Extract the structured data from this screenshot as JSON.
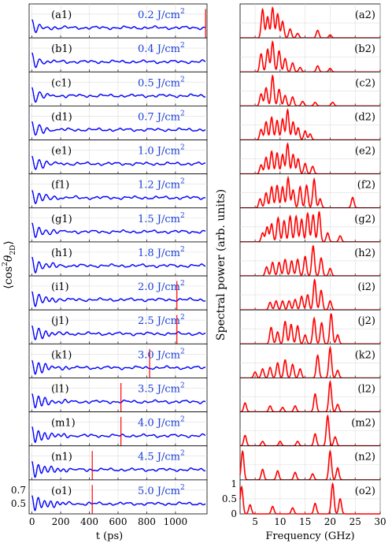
{
  "chart_data": [
    {
      "type": "line",
      "ylabel_main": "⟨cos",
      "ylabel_sup": "2",
      "ylabel_theta": "θ",
      "ylabel_sub": "2D",
      "ylabel_close": "⟩",
      "xlabel": "t (ps)",
      "x_ticks": [
        "0",
        "200",
        "400",
        "600",
        "800",
        "1000"
      ],
      "x_tick_values": [
        0,
        200,
        400,
        600,
        800,
        1000
      ],
      "xlim": [
        -20,
        1220
      ],
      "ylim": [
        0.35,
        0.85
      ],
      "y_ticks_bottom": [
        "0.5",
        "0.7"
      ],
      "y_tick_values": [
        0.5,
        0.7
      ],
      "series_color": "#0000ff",
      "marker_color": "#ff0000",
      "panels": [
        {
          "label": "(a1)",
          "fluence": "0.2 J/cm",
          "sup": "2",
          "marker": 1210
        },
        {
          "label": "(b1)",
          "fluence": "0.4 J/cm",
          "sup": "2",
          "marker": null
        },
        {
          "label": "(c1)",
          "fluence": "0.5 J/cm",
          "sup": "2",
          "marker": null
        },
        {
          "label": "(d1)",
          "fluence": "0.7 J/cm",
          "sup": "2",
          "marker": null
        },
        {
          "label": "(e1)",
          "fluence": "1.0 J/cm",
          "sup": "2",
          "marker": null
        },
        {
          "label": "(f1)",
          "fluence": "1.2 J/cm",
          "sup": "2",
          "marker": null
        },
        {
          "label": "(g1)",
          "fluence": "1.5 J/cm",
          "sup": "2",
          "marker": null
        },
        {
          "label": "(h1)",
          "fluence": "1.8 J/cm",
          "sup": "2",
          "marker": null
        },
        {
          "label": "(i1)",
          "fluence": "2.0 J/cm",
          "sup": "2",
          "marker": 1010
        },
        {
          "label": "(j1)",
          "fluence": "2.5 J/cm",
          "sup": "2",
          "marker": 1010
        },
        {
          "label": "(k1)",
          "fluence": "3.0 J/cm",
          "sup": "2",
          "marker": 820
        },
        {
          "label": "(l1)",
          "fluence": "3.5 J/cm",
          "sup": "2",
          "marker": 620
        },
        {
          "label": "(m1)",
          "fluence": "4.0 J/cm",
          "sup": "2",
          "marker": 620
        },
        {
          "label": "(n1)",
          "fluence": "4.5 J/cm",
          "sup": "2",
          "marker": 420
        },
        {
          "label": "(o1)",
          "fluence": "5.0 J/cm",
          "sup": "2",
          "marker": 420
        }
      ]
    },
    {
      "type": "line",
      "ylabel": "Spectral power (arb. units)",
      "xlabel": "Frequency (GHz)",
      "x_ticks": [
        "5",
        "10",
        "15",
        "20",
        "25",
        "30"
      ],
      "x_tick_values": [
        5,
        10,
        15,
        20,
        25,
        30
      ],
      "xlim": [
        2,
        30
      ],
      "ylim": [
        0,
        1.05
      ],
      "y_ticks_bottom": [
        "0",
        "0.5",
        "1"
      ],
      "y_tick_values": [
        0,
        0.5,
        1
      ],
      "series_color": "#ff0000",
      "panels": [
        {
          "label": "(a2)",
          "peaks": [
            [
              6.5,
              0.95
            ],
            [
              7.5,
              0.7
            ],
            [
              8.5,
              1.0
            ],
            [
              9.5,
              0.8
            ],
            [
              10.5,
              0.55
            ],
            [
              12,
              0.3
            ],
            [
              13.5,
              0.15
            ],
            [
              17.5,
              0.25
            ],
            [
              20,
              0.1
            ]
          ]
        },
        {
          "label": "(b2)",
          "peaks": [
            [
              6.2,
              0.6
            ],
            [
              7.5,
              0.75
            ],
            [
              8.5,
              1.0
            ],
            [
              9.8,
              0.7
            ],
            [
              11,
              0.45
            ],
            [
              12.5,
              0.3
            ],
            [
              14,
              0.15
            ],
            [
              17.5,
              0.2
            ],
            [
              20,
              0.12
            ]
          ]
        },
        {
          "label": "(c2)",
          "peaks": [
            [
              6.2,
              0.4
            ],
            [
              7.2,
              0.6
            ],
            [
              8.5,
              1.0
            ],
            [
              9.8,
              0.55
            ],
            [
              11,
              0.35
            ],
            [
              12.5,
              0.3
            ],
            [
              14.5,
              0.15
            ],
            [
              17,
              0.12
            ],
            [
              20.5,
              0.12
            ]
          ]
        },
        {
          "label": "(d2)",
          "peaks": [
            [
              6.2,
              0.35
            ],
            [
              7.2,
              0.6
            ],
            [
              8.3,
              0.75
            ],
            [
              9.4,
              0.65
            ],
            [
              10.5,
              0.7
            ],
            [
              11.5,
              1.0
            ],
            [
              12.6,
              0.6
            ],
            [
              13.6,
              0.4
            ],
            [
              15,
              0.3
            ],
            [
              16,
              0.2
            ]
          ]
        },
        {
          "label": "(e2)",
          "peaks": [
            [
              6.2,
              0.3
            ],
            [
              7.2,
              0.55
            ],
            [
              8.3,
              0.75
            ],
            [
              9.4,
              0.7
            ],
            [
              10.5,
              0.65
            ],
            [
              11.5,
              1.0
            ],
            [
              12.6,
              0.65
            ],
            [
              13.6,
              0.5
            ],
            [
              15,
              0.35
            ],
            [
              16.5,
              0.25
            ]
          ]
        },
        {
          "label": "(f2)",
          "peaks": [
            [
              6,
              0.3
            ],
            [
              7.2,
              0.5
            ],
            [
              8.3,
              0.7
            ],
            [
              9.4,
              0.75
            ],
            [
              10.5,
              0.7
            ],
            [
              11.6,
              1.0
            ],
            [
              12.6,
              0.6
            ],
            [
              14,
              0.7
            ],
            [
              15.3,
              0.75
            ],
            [
              16.8,
              0.95
            ],
            [
              18,
              0.3
            ],
            [
              24.5,
              0.35
            ]
          ]
        },
        {
          "label": "(g2)",
          "peaks": [
            [
              6.5,
              0.3
            ],
            [
              7.4,
              0.5
            ],
            [
              8.3,
              0.6
            ],
            [
              9.6,
              0.8
            ],
            [
              10.8,
              0.7
            ],
            [
              12,
              0.85
            ],
            [
              13.2,
              0.85
            ],
            [
              14.3,
              0.75
            ],
            [
              15.5,
              0.95
            ],
            [
              16.6,
              0.9
            ],
            [
              17.8,
              1.0
            ],
            [
              19.5,
              0.3
            ],
            [
              22,
              0.2
            ]
          ]
        },
        {
          "label": "(h2)",
          "peaks": [
            [
              7.3,
              0.3
            ],
            [
              8.5,
              0.45
            ],
            [
              9.8,
              0.45
            ],
            [
              11,
              0.55
            ],
            [
              12.3,
              0.5
            ],
            [
              13.5,
              0.55
            ],
            [
              15,
              0.65
            ],
            [
              16.6,
              1.0
            ],
            [
              18.2,
              0.6
            ],
            [
              20,
              0.25
            ]
          ]
        },
        {
          "label": "(i2)",
          "peaks": [
            [
              8,
              0.25
            ],
            [
              9.2,
              0.3
            ],
            [
              10.5,
              0.3
            ],
            [
              11.8,
              0.3
            ],
            [
              13,
              0.35
            ],
            [
              14.3,
              0.45
            ],
            [
              15.5,
              0.5
            ],
            [
              16.9,
              1.0
            ],
            [
              18.2,
              0.65
            ],
            [
              20,
              0.3
            ]
          ]
        },
        {
          "label": "(j2)",
          "peaks": [
            [
              8.2,
              0.55
            ],
            [
              9.5,
              0.4
            ],
            [
              11,
              0.75
            ],
            [
              12.2,
              0.65
            ],
            [
              13.5,
              0.6
            ],
            [
              15,
              0.3
            ],
            [
              16.8,
              0.85
            ],
            [
              18.3,
              0.7
            ],
            [
              20.2,
              1.0
            ],
            [
              21.5,
              0.3
            ]
          ]
        },
        {
          "label": "(k2)",
          "peaks": [
            [
              5,
              0.2
            ],
            [
              6.5,
              0.3
            ],
            [
              8,
              0.35
            ],
            [
              9.5,
              0.5
            ],
            [
              11,
              0.6
            ],
            [
              12.5,
              0.45
            ],
            [
              14,
              0.3
            ],
            [
              17.5,
              0.75
            ],
            [
              20,
              1.0
            ],
            [
              21.5,
              0.25
            ]
          ]
        },
        {
          "label": "(l2)",
          "peaks": [
            [
              3,
              0.3
            ],
            [
              8,
              0.2
            ],
            [
              10.5,
              0.15
            ],
            [
              13,
              0.2
            ],
            [
              17,
              0.6
            ],
            [
              20,
              1.0
            ],
            [
              21.5,
              0.25
            ]
          ]
        },
        {
          "label": "(m2)",
          "peaks": [
            [
              3,
              0.35
            ],
            [
              6.5,
              0.15
            ],
            [
              10,
              0.15
            ],
            [
              13.5,
              0.15
            ],
            [
              17,
              0.4
            ],
            [
              19.5,
              1.0
            ],
            [
              21,
              0.3
            ]
          ]
        },
        {
          "label": "(n2)",
          "peaks": [
            [
              2.5,
              0.95
            ],
            [
              6.5,
              0.35
            ],
            [
              9.5,
              0.3
            ],
            [
              13,
              0.25
            ],
            [
              16.5,
              0.2
            ],
            [
              20,
              0.95
            ],
            [
              21.5,
              0.4
            ]
          ]
        },
        {
          "label": "(o2)",
          "peaks": [
            [
              2.3,
              0.9
            ],
            [
              4,
              0.3
            ],
            [
              8.5,
              0.25
            ],
            [
              12.5,
              0.2
            ],
            [
              17,
              0.35
            ],
            [
              20.5,
              1.0
            ],
            [
              22,
              0.5
            ]
          ]
        }
      ]
    }
  ]
}
